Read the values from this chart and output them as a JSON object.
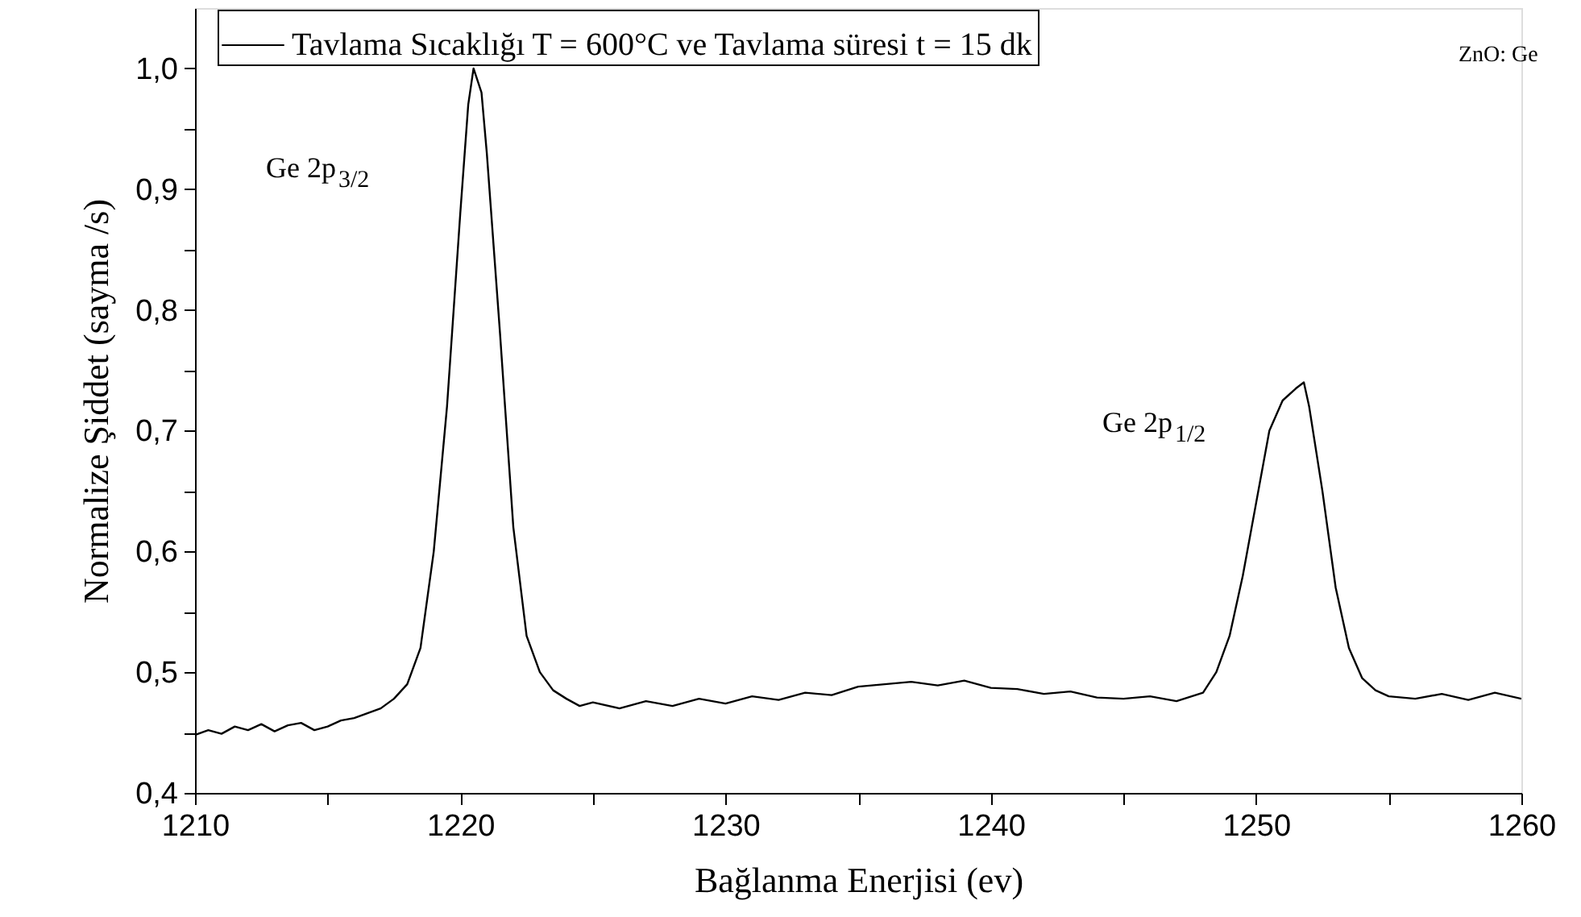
{
  "chart_data": {
    "type": "line",
    "xlabel": "Bağlanma Enerjisi (ev)",
    "ylabel": "Normalize Şiddet (sayma /s)",
    "x": [
      1210,
      1210.5,
      1211,
      1211.5,
      1212,
      1212.5,
      1213,
      1213.5,
      1214,
      1214.5,
      1215,
      1215.5,
      1216,
      1216.5,
      1217,
      1217.5,
      1218,
      1218.5,
      1219,
      1219.5,
      1220,
      1220.3,
      1220.5,
      1220.8,
      1221,
      1221.5,
      1222,
      1222.5,
      1223,
      1223.5,
      1224,
      1224.5,
      1225,
      1226,
      1227,
      1228,
      1229,
      1230,
      1231,
      1232,
      1233,
      1234,
      1235,
      1236,
      1237,
      1238,
      1239,
      1240,
      1241,
      1242,
      1243,
      1244,
      1245,
      1246,
      1247,
      1248,
      1248.5,
      1249,
      1249.5,
      1250,
      1250.5,
      1251,
      1251.5,
      1251.8,
      1252,
      1252.5,
      1253,
      1253.5,
      1254,
      1254.5,
      1255,
      1256,
      1257,
      1258,
      1259,
      1260
    ],
    "series": [
      {
        "name": "Tavlama Sıcaklığı T = 600°C ve Tavlama süresi t = 15 dk",
        "color": "#000000",
        "values": [
          0.448,
          0.452,
          0.449,
          0.455,
          0.452,
          0.457,
          0.451,
          0.456,
          0.458,
          0.452,
          0.455,
          0.46,
          0.462,
          0.466,
          0.47,
          0.478,
          0.49,
          0.52,
          0.6,
          0.72,
          0.88,
          0.97,
          1.0,
          0.98,
          0.93,
          0.78,
          0.62,
          0.53,
          0.5,
          0.485,
          0.478,
          0.472,
          0.475,
          0.47,
          0.476,
          0.472,
          0.478,
          0.474,
          0.48,
          0.477,
          0.483,
          0.481,
          0.488,
          0.49,
          0.492,
          0.489,
          0.493,
          0.487,
          0.486,
          0.482,
          0.484,
          0.479,
          0.478,
          0.48,
          0.476,
          0.483,
          0.5,
          0.53,
          0.58,
          0.64,
          0.7,
          0.725,
          0.735,
          0.74,
          0.72,
          0.65,
          0.57,
          0.52,
          0.495,
          0.485,
          0.48,
          0.478,
          0.482,
          0.477,
          0.483,
          0.478
        ]
      }
    ],
    "xlim": [
      1210,
      1260
    ],
    "ylim": [
      0.4,
      1.05
    ],
    "xticks": [
      1210,
      {
        "value": 1215,
        "label": null
      },
      1220,
      {
        "value": 1225,
        "label": null
      },
      1230,
      {
        "value": 1235,
        "label": null
      },
      1240,
      {
        "value": 1245,
        "label": null
      },
      1250,
      {
        "value": 1255,
        "label": null
      },
      1260
    ],
    "yticks": [
      {
        "value": 0.4,
        "label": "0,4"
      },
      {
        "value": 0.45,
        "label": null
      },
      {
        "value": 0.5,
        "label": "0,5"
      },
      {
        "value": 0.55,
        "label": null
      },
      {
        "value": 0.6,
        "label": "0,6"
      },
      {
        "value": 0.65,
        "label": null
      },
      {
        "value": 0.7,
        "label": "0,7"
      },
      {
        "value": 0.75,
        "label": null
      },
      {
        "value": 0.8,
        "label": "0,8"
      },
      {
        "value": 0.85,
        "label": null
      },
      {
        "value": 0.9,
        "label": "0,9"
      },
      {
        "value": 0.95,
        "label": null
      },
      {
        "value": 1.0,
        "label": "1,0"
      }
    ],
    "annotations": [
      "Ge 2p$_{3/2}$",
      "Ge 2p$_{1/2}$",
      "ZnO: Ge"
    ],
    "legend": "top",
    "grid": false,
    "marker": "none",
    "line_style": "solid"
  }
}
